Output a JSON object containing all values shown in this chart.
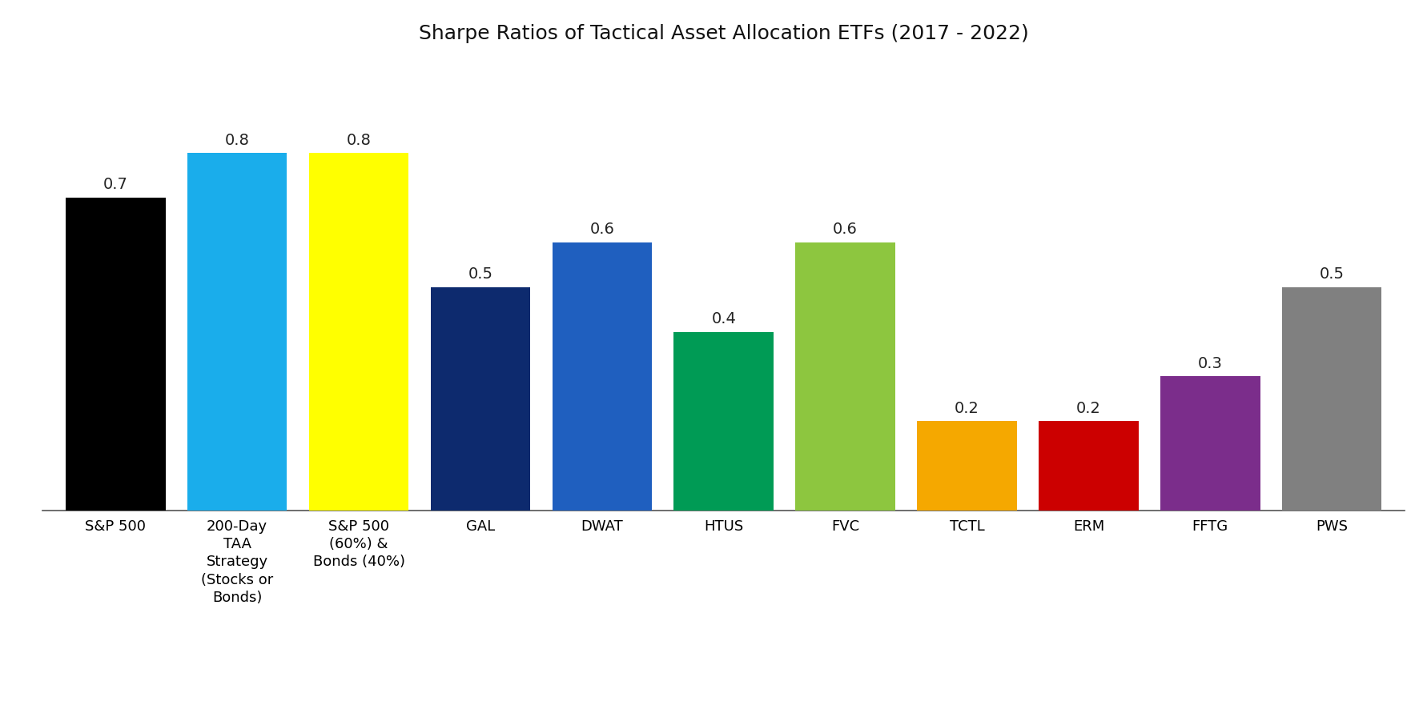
{
  "title": "Sharpe Ratios of Tactical Asset Allocation ETFs (2017 - 2022)",
  "categories": [
    "S&P 500",
    "200-Day\nTAA\nStrategy\n(Stocks or\nBonds)",
    "S&P 500\n(60%) &\nBonds (40%)",
    "GAL",
    "DWAT",
    "HTUS",
    "FVC",
    "TCTL",
    "ERM",
    "FFTG",
    "PWS"
  ],
  "values": [
    0.7,
    0.8,
    0.8,
    0.5,
    0.6,
    0.4,
    0.6,
    0.2,
    0.2,
    0.3,
    0.5
  ],
  "bar_colors": [
    "#000000",
    "#1AADEB",
    "#FFFF00",
    "#0D2A6E",
    "#1F5FBF",
    "#009B55",
    "#8DC63F",
    "#F5A800",
    "#CC0000",
    "#7B2D8B",
    "#808080"
  ],
  "value_labels": [
    "0.7",
    "0.8",
    "0.8",
    "0.5",
    "0.6",
    "0.4",
    "0.6",
    "0.2",
    "0.2",
    "0.3",
    "0.5"
  ],
  "ylim": [
    0,
    1.0
  ],
  "title_fontsize": 18,
  "label_fontsize": 14,
  "tick_fontsize": 13,
  "bar_width": 0.82,
  "background_color": "#ffffff"
}
